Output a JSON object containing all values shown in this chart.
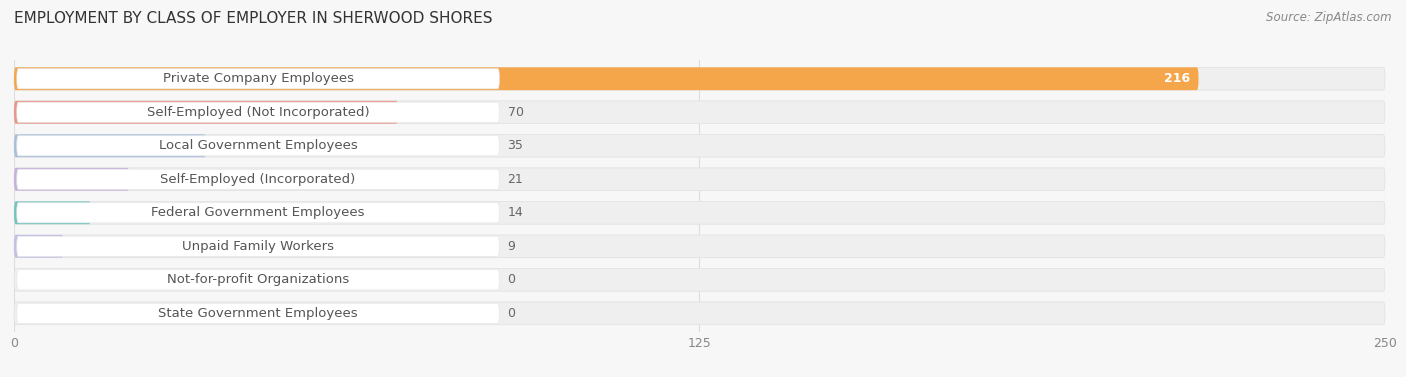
{
  "title": "EMPLOYMENT BY CLASS OF EMPLOYER IN SHERWOOD SHORES",
  "source": "Source: ZipAtlas.com",
  "categories": [
    "Private Company Employees",
    "Self-Employed (Not Incorporated)",
    "Local Government Employees",
    "Self-Employed (Incorporated)",
    "Federal Government Employees",
    "Unpaid Family Workers",
    "Not-for-profit Organizations",
    "State Government Employees"
  ],
  "values": [
    216,
    70,
    35,
    21,
    14,
    9,
    0,
    0
  ],
  "bar_colors": [
    "#f5a54a",
    "#e8968a",
    "#a8bedd",
    "#c4b2d8",
    "#72c4bc",
    "#c0c0e8",
    "#f5a8c0",
    "#f5d4a0"
  ],
  "bar_bg_color": "#efefef",
  "label_bg_color": "#ffffff",
  "label_color": "#555555",
  "value_color_inside": "#ffffff",
  "value_color_outside": "#666666",
  "title_color": "#333333",
  "source_color": "#888888",
  "page_bg_color": "#f7f7f7",
  "xlim_max": 250,
  "xticks": [
    0,
    125,
    250
  ],
  "title_fontsize": 11,
  "label_fontsize": 9.5,
  "value_fontsize": 9,
  "source_fontsize": 8.5,
  "tick_fontsize": 9
}
